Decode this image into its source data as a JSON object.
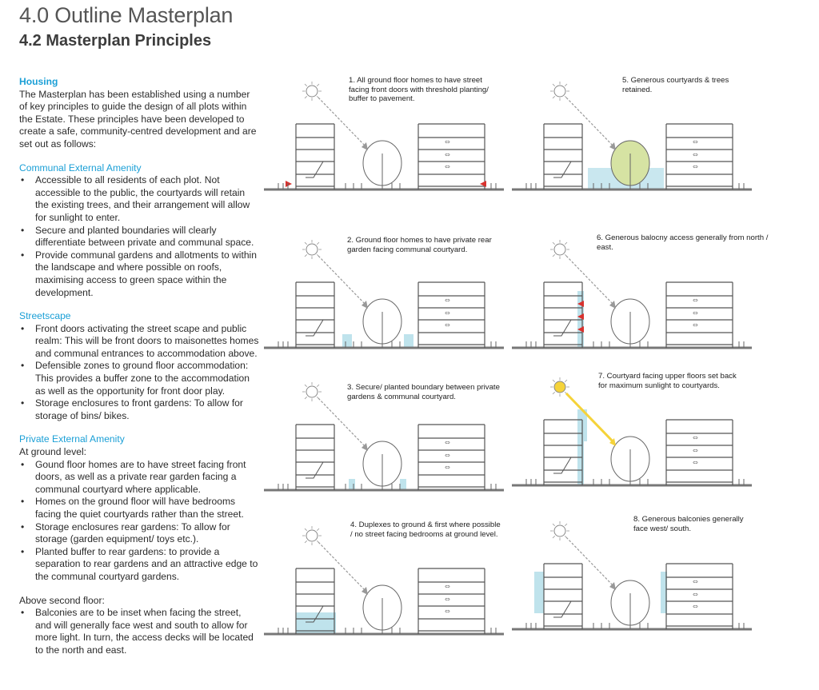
{
  "header": {
    "title": "4.0 Outline Masterplan",
    "subtitle": "4.2 Masterplan Principles"
  },
  "left": {
    "housing_heading": "Housing",
    "housing_intro": "The Masterplan has been established using a number of key principles to guide the design of all plots within the Estate. These principles have been developed to create a safe, community-centred development and are set out as follows:",
    "communal_heading": "Communal External Amenity",
    "communal_items": [
      "Accessible to all residents of each plot. Not accessible to the public, the courtyards will retain the existing trees, and their arrangement will allow for sunlight to enter.",
      "Secure and planted boundaries will clearly differentiate between private and communal space.",
      "Provide communal gardens and allotments to within the landscape and where possible on roofs, maximising access to green space within the development."
    ],
    "street_heading": "Streetscape",
    "street_items": [
      "Front doors activating the street scape and public realm: This will be front doors to maisonettes homes and communal entrances to accommodation above.",
      "Defensible zones to ground floor accommodation: This provides a buffer zone to the accommodation as well as the opportunity for front door play.",
      "Storage enclosures to front gardens: To allow for storage of bins/ bikes."
    ],
    "private_heading": "Private External Amenity",
    "private_intro": "At ground level:",
    "private_items": [
      "Gound floor homes are to have street facing front doors, as well as a private rear garden facing a communal courtyard where applicable.",
      "Homes on the ground floor will have bedrooms facing the quiet courtyards rather than the street.",
      "Storage enclosures rear gardens: To allow for storage (garden equipment/ toys etc.).",
      "Planted buffer to rear gardens: to provide a separation to rear gardens and an attractive edge to the communal courtyard gardens."
    ],
    "above_intro": "Above second floor:",
    "above_items": [
      "Balconies are to be inset when facing the street, and will generally face west and south to allow for more light. In turn, the access decks will be located to the north and east."
    ]
  },
  "diagrams": [
    {
      "caption": "1. All ground floor homes to have street facing front doors with threshold planting/ buffer to pavement.",
      "highlight": "front-doors"
    },
    {
      "caption": "2. Ground floor homes to have private rear garden facing communal courtyard.",
      "highlight": "rear-gardens"
    },
    {
      "caption": "3. Secure/ planted boundary between private gardens & communal courtyard.",
      "highlight": "boundary"
    },
    {
      "caption": "4. Duplexes to ground & first where possible / no street facing bedrooms at ground level.",
      "highlight": "duplex"
    },
    {
      "caption": "5. Generous courtyards & trees retained.",
      "highlight": "courtyard"
    },
    {
      "caption": "6. Generous balocny access generally from north / east.",
      "highlight": "access"
    },
    {
      "caption": "7. Courtyard facing upper floors set back for maximum sunlight to courtyards.",
      "highlight": "setback"
    },
    {
      "caption": "8. Generous balconies generally face west/ south.",
      "highlight": "balconies"
    }
  ],
  "colors": {
    "accent": "#1a9fd6",
    "highlight_blue": "#bfe3ec",
    "tree_green": "#d6e3a3",
    "sun_yellow": "#f5d33a",
    "arrow_red": "#d8322e",
    "ground": "#777777"
  }
}
